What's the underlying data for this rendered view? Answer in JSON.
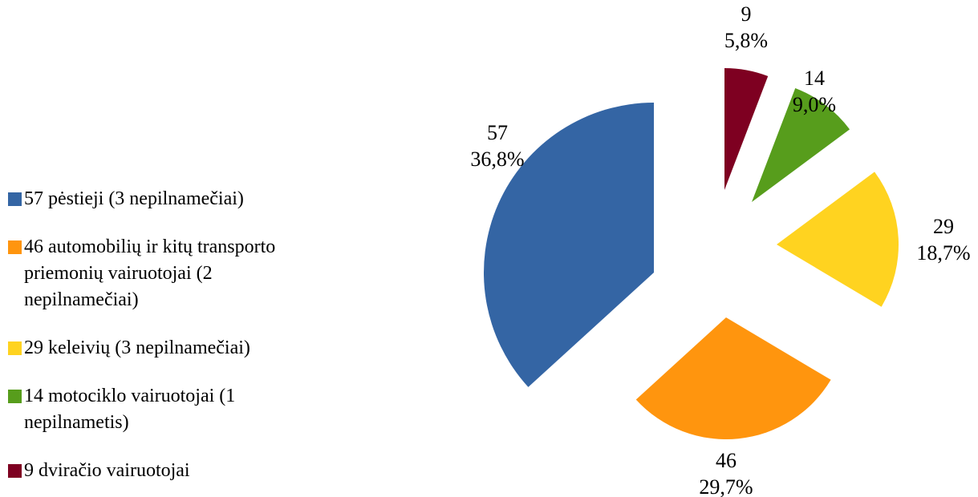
{
  "chart_data": {
    "type": "pie",
    "categories": [
      "57 pėstieji (3 nepilnamečiai)",
      "46 automobilių ir kitų transporto priemonių vairuotojai (2 nepilnamečiai)",
      "29 keleivių (3 nepilnamečiai)",
      "14 motociklo vairuotojai (1 nepilnametis)",
      "9 dviračio vairuotojai"
    ],
    "values": [
      57,
      46,
      29,
      14,
      9
    ],
    "percent_labels": [
      "36,8%",
      "29,7%",
      "18,7%",
      "9,0%",
      "5,8%"
    ],
    "colors": [
      "#3465a4",
      "#ff950e",
      "#ffd320",
      "#579d1c",
      "#7e0021"
    ],
    "legend": "left"
  }
}
